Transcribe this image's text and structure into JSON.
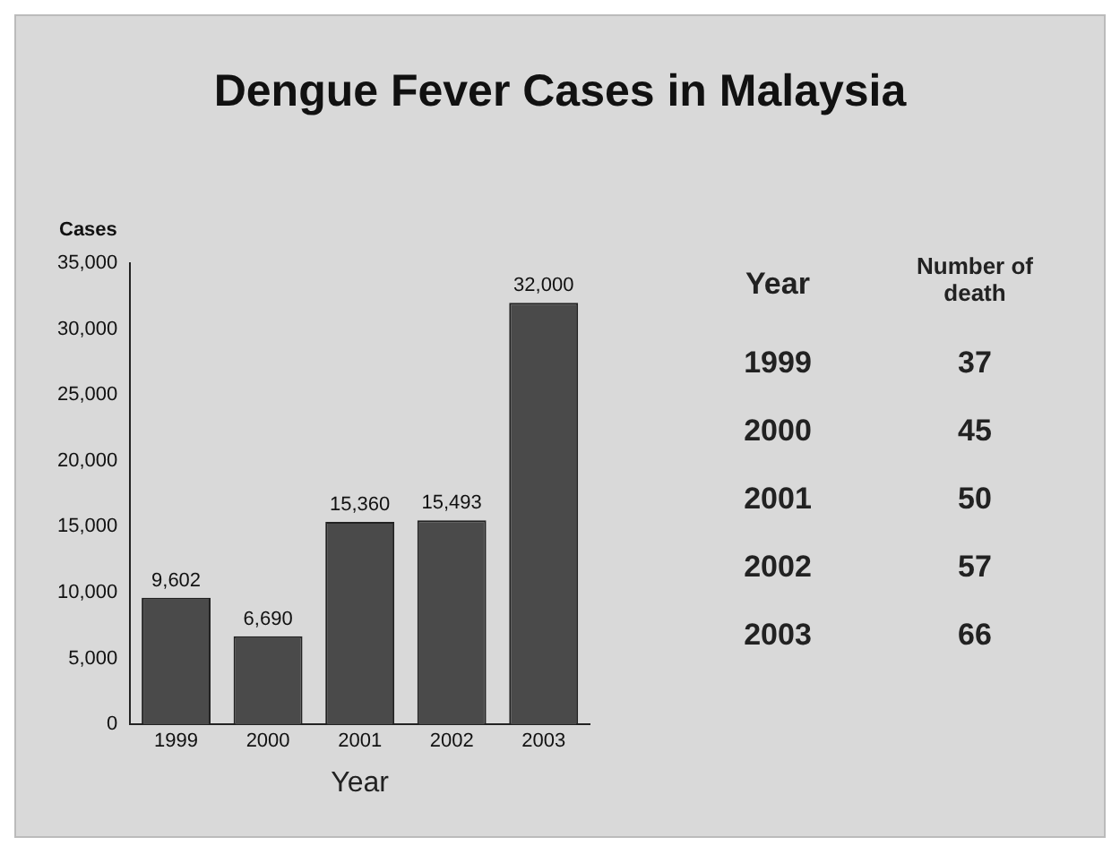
{
  "chart_data": [
    {
      "type": "bar",
      "title": "Dengue Fever Cases in Malaysia",
      "xlabel": "Year",
      "ylabel": "Cases",
      "categories": [
        "1999",
        "2000",
        "2001",
        "2002",
        "2003"
      ],
      "values": [
        9602,
        6690,
        15360,
        15493,
        32000
      ],
      "value_labels": [
        "9,602",
        "6,690",
        "15,360",
        "15,493",
        "32,000"
      ],
      "color": "#4a4a4a",
      "ylim": [
        0,
        35000
      ],
      "yticks": [
        0,
        {
          "value": 5000,
          "label": "5,000"
        },
        {
          "value": 10000,
          "label": "10,000"
        },
        {
          "value": 15000,
          "label": "15,000"
        },
        {
          "value": 20000,
          "label": "20,000"
        },
        {
          "value": 25000,
          "label": "25,000"
        },
        {
          "value": 30000,
          "label": "30,000"
        },
        {
          "value": 35000,
          "label": "35,000"
        }
      ],
      "grid": false,
      "legend": false
    },
    {
      "type": "heatmap",
      "ylabel": "Year",
      "categories": [
        "Number of death"
      ],
      "y_categories": [
        "1999",
        "2000",
        "2001",
        "2002",
        "2003"
      ],
      "cells": [
        [
          37
        ],
        [
          45
        ],
        [
          50
        ],
        [
          57
        ],
        [
          66
        ]
      ],
      "data_labels": true
    }
  ]
}
